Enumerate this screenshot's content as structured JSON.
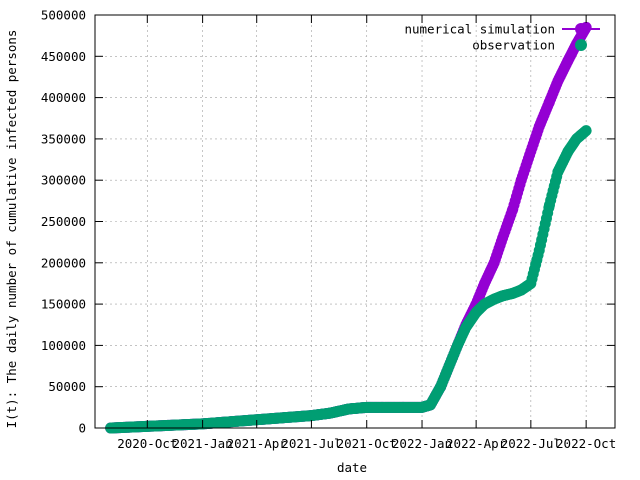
{
  "chart_data": {
    "type": "scatter",
    "title": "",
    "xlabel": "date",
    "ylabel": "I(t): The daily number of cumulative infected persons",
    "x_tick_labels": [
      "2020-Oct",
      "2021-Jan",
      "2021-Apr",
      "2021-Jul",
      "2021-Oct",
      "2022-Jan",
      "2022-Apr",
      "2022-Jul",
      "2022-Oct"
    ],
    "x_ticks": [
      "2020-10-01",
      "2021-01-01",
      "2021-04-01",
      "2021-07-01",
      "2021-10-01",
      "2022-01-01",
      "2022-04-01",
      "2022-07-01",
      "2022-10-01"
    ],
    "xlim": [
      "2020-07-06",
      "2022-11-18"
    ],
    "y_ticks": [
      0,
      50000,
      100000,
      150000,
      200000,
      250000,
      300000,
      350000,
      400000,
      450000,
      500000
    ],
    "ylim": [
      0,
      500000
    ],
    "grid": true,
    "legend_position": "top-right",
    "series": [
      {
        "name": "numerical simulation",
        "color": "#9400d3",
        "marker": "circle",
        "x": [
          "2020-08-01",
          "2020-10-01",
          "2021-01-01",
          "2021-04-01",
          "2021-07-01",
          "2021-08-01",
          "2021-09-01",
          "2021-10-01",
          "2021-12-01",
          "2022-01-01",
          "2022-01-15",
          "2022-02-01",
          "2022-02-15",
          "2022-03-01",
          "2022-03-15",
          "2022-04-01",
          "2022-04-15",
          "2022-05-01",
          "2022-05-15",
          "2022-06-01",
          "2022-06-15",
          "2022-07-01",
          "2022-07-15",
          "2022-08-01",
          "2022-08-15",
          "2022-09-01",
          "2022-09-15",
          "2022-10-01"
        ],
        "y": [
          0,
          2000,
          5000,
          10000,
          15000,
          18000,
          23000,
          25000,
          25000,
          25000,
          28000,
          50000,
          75000,
          100000,
          125000,
          150000,
          175000,
          200000,
          230000,
          265000,
          300000,
          335000,
          365000,
          395000,
          420000,
          445000,
          465000,
          485000
        ]
      },
      {
        "name": "observation",
        "color": "#009e73",
        "marker": "circle",
        "x": [
          "2020-08-01",
          "2020-10-01",
          "2021-01-01",
          "2021-04-01",
          "2021-07-01",
          "2021-08-01",
          "2021-09-01",
          "2021-10-01",
          "2021-12-01",
          "2022-01-01",
          "2022-01-15",
          "2022-02-01",
          "2022-02-15",
          "2022-03-01",
          "2022-03-15",
          "2022-04-01",
          "2022-04-15",
          "2022-05-01",
          "2022-05-15",
          "2022-06-01",
          "2022-06-15",
          "2022-07-01",
          "2022-07-15",
          "2022-08-01",
          "2022-08-15",
          "2022-09-01",
          "2022-09-15",
          "2022-10-01"
        ],
        "y": [
          0,
          2000,
          5000,
          10000,
          15000,
          18000,
          23000,
          25000,
          25000,
          25000,
          28000,
          50000,
          75000,
          100000,
          122000,
          140000,
          150000,
          156000,
          160000,
          163000,
          167000,
          175000,
          215000,
          270000,
          310000,
          335000,
          350000,
          360000
        ]
      }
    ]
  }
}
